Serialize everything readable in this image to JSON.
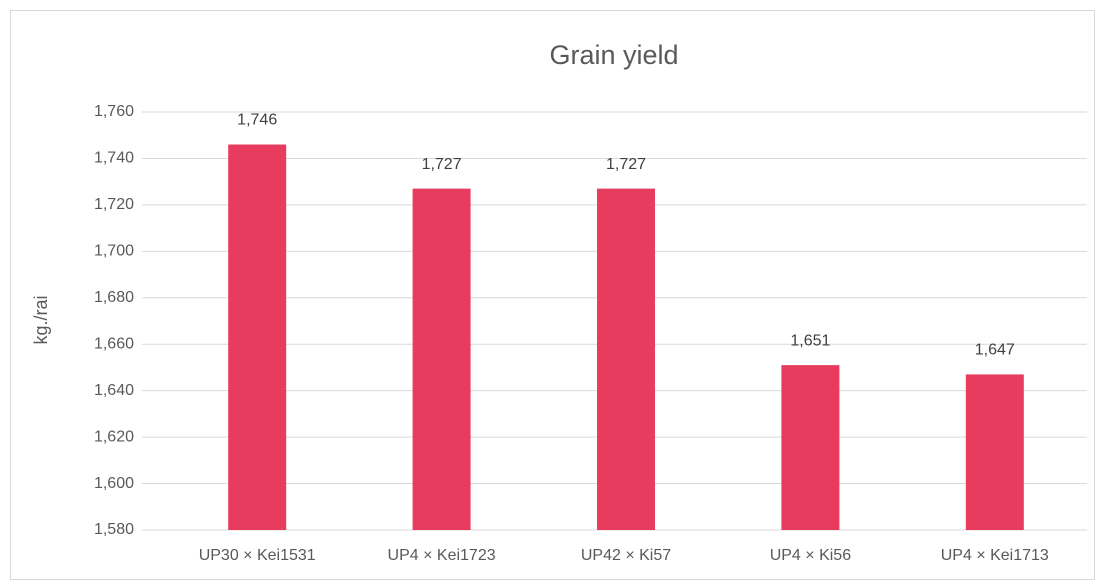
{
  "chart_data": {
    "type": "bar",
    "title": "Grain yield",
    "y_label": "kg./rai",
    "categories": [
      "UP30 × Kei1531",
      "UP4 × Kei1723",
      "UP42 × Ki57",
      "UP4 × Ki56",
      "UP4 × Kei1713"
    ],
    "values": [
      1746,
      1727,
      1727,
      1651,
      1647
    ],
    "value_labels": [
      "1,746",
      "1,727",
      "1,727",
      "1,651",
      "1,647"
    ],
    "color": "#e83c5f",
    "ylim": [
      1580,
      1760
    ],
    "yticks": [
      {
        "value": 1580,
        "label": "1,580"
      },
      {
        "value": 1600,
        "label": "1,600"
      },
      {
        "value": 1620,
        "label": "1,620"
      },
      {
        "value": 1640,
        "label": "1,640"
      },
      {
        "value": 1660,
        "label": "1,660"
      },
      {
        "value": 1680,
        "label": "1,680"
      },
      {
        "value": 1700,
        "label": "1,700"
      },
      {
        "value": 1720,
        "label": "1,720"
      },
      {
        "value": 1740,
        "label": "1,740"
      },
      {
        "value": 1760,
        "label": "1,760"
      }
    ],
    "grid": true
  }
}
